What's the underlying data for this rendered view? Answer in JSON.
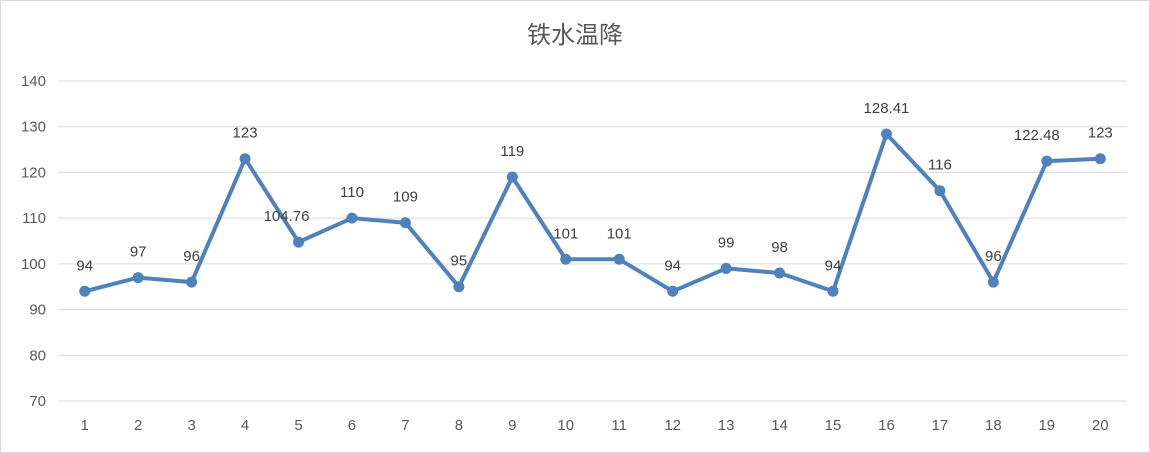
{
  "chart_data": {
    "type": "line",
    "title": "铁水温降",
    "xlabel": "",
    "ylabel": "",
    "categories": [
      "1",
      "2",
      "3",
      "4",
      "5",
      "6",
      "7",
      "8",
      "9",
      "10",
      "11",
      "12",
      "13",
      "14",
      "15",
      "16",
      "17",
      "18",
      "19",
      "20"
    ],
    "series": [
      {
        "values": [
          94,
          97,
          96,
          123,
          104.76,
          110,
          109,
          95,
          119,
          101,
          101,
          94,
          99,
          98,
          94,
          128.41,
          116,
          96,
          122.48,
          123
        ],
        "data_labels": [
          "94",
          "97",
          "96",
          "123",
          "104.76",
          "110",
          "109",
          "95",
          "119",
          "101",
          "101",
          "94",
          "99",
          "98",
          "94",
          "128.41",
          "116",
          "96",
          "122.48",
          "123"
        ],
        "color": "#4f81bd"
      }
    ],
    "ylim": [
      70,
      140
    ],
    "yticks": [
      "70",
      "80",
      "90",
      "100",
      "110",
      "120",
      "130",
      "140"
    ],
    "grid": true,
    "legend": "none"
  }
}
